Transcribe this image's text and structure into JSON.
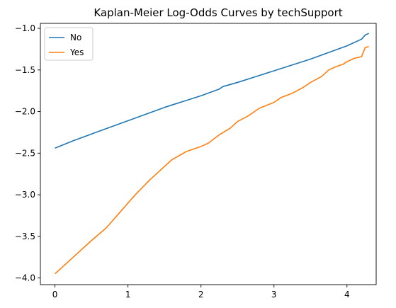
{
  "chart_data": {
    "type": "line",
    "title": "Kaplan-Meier Log-Odds Curves by techSupport",
    "xlabel": "",
    "ylabel": "",
    "xlim": [
      -0.2,
      4.4
    ],
    "ylim": [
      -4.08,
      -0.94
    ],
    "xticks": [
      0,
      1,
      2,
      3,
      4
    ],
    "yticks": [
      -4.0,
      -3.5,
      -3.0,
      -2.5,
      -2.0,
      -1.5,
      -1.0
    ],
    "xtick_labels": [
      "0",
      "1",
      "2",
      "3",
      "4"
    ],
    "ytick_labels": [
      "−4.0",
      "−3.5",
      "−3.0",
      "−2.5",
      "−2.0",
      "−1.5",
      "−1.0"
    ],
    "grid": false,
    "legend_position": "top-left",
    "series": [
      {
        "name": "No",
        "color": "#1f77b4",
        "x": [
          0,
          0.25,
          0.5,
          0.75,
          1.0,
          1.25,
          1.5,
          1.75,
          2.0,
          2.25,
          2.3,
          2.5,
          2.75,
          3.0,
          3.25,
          3.5,
          3.75,
          4.0,
          4.1,
          4.15,
          4.2,
          4.25,
          4.3
        ],
        "y": [
          -2.44,
          -2.35,
          -2.27,
          -2.19,
          -2.11,
          -2.03,
          -1.95,
          -1.88,
          -1.81,
          -1.73,
          -1.7,
          -1.65,
          -1.58,
          -1.51,
          -1.44,
          -1.37,
          -1.29,
          -1.21,
          -1.17,
          -1.15,
          -1.13,
          -1.08,
          -1.06
        ]
      },
      {
        "name": "Yes",
        "color": "#ff7f0e",
        "x": [
          0,
          0.25,
          0.5,
          0.7,
          1.0,
          1.1,
          1.3,
          1.6,
          1.8,
          2.0,
          2.1,
          2.25,
          2.4,
          2.5,
          2.65,
          2.8,
          3.0,
          3.1,
          3.25,
          3.4,
          3.5,
          3.65,
          3.75,
          3.85,
          3.95,
          4.0,
          4.05,
          4.1,
          4.15,
          4.2,
          4.25,
          4.3
        ],
        "y": [
          -3.95,
          -3.75,
          -3.55,
          -3.4,
          -3.1,
          -3.0,
          -2.82,
          -2.58,
          -2.48,
          -2.42,
          -2.38,
          -2.28,
          -2.2,
          -2.12,
          -2.05,
          -1.96,
          -1.89,
          -1.83,
          -1.78,
          -1.71,
          -1.65,
          -1.58,
          -1.5,
          -1.46,
          -1.43,
          -1.4,
          -1.38,
          -1.36,
          -1.35,
          -1.34,
          -1.23,
          -1.22
        ]
      }
    ]
  }
}
